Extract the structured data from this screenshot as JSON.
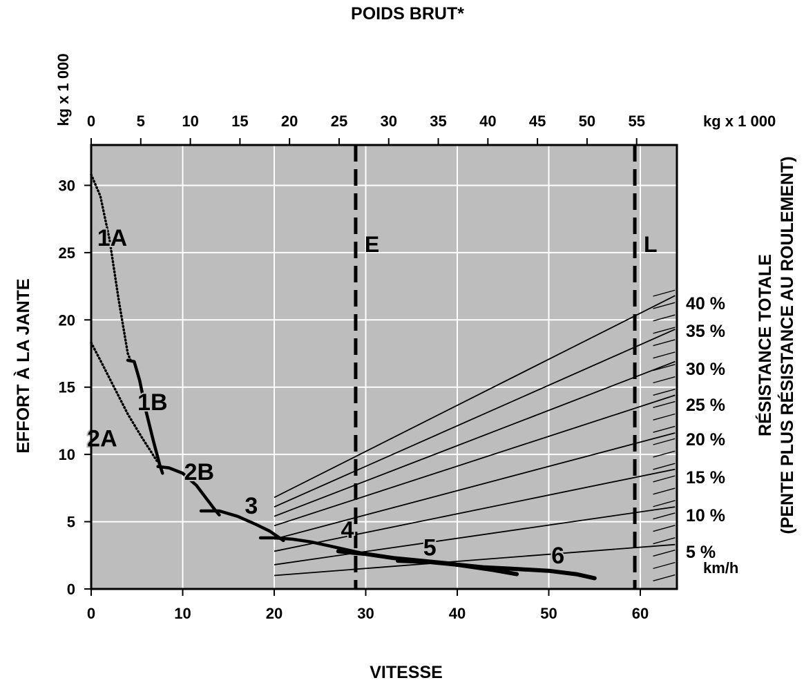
{
  "chart_data": {
    "type": "line",
    "title": "POIDS BRUT*",
    "xlabel": "VITESSE",
    "xunit": "km/h",
    "ylabel": "EFFORT À LA JANTE",
    "yunit_left": "kg x 1 000",
    "top_axis_unit": "kg x 1 000",
    "right_label_line1": "RÉSISTANCE TOTALE",
    "right_label_line2": "(PENTE PLUS RÉSISTANCE AU ROULEMENT)",
    "xlim": [
      0,
      64
    ],
    "ylim": [
      0,
      33
    ],
    "x_ticks": [
      "0",
      "10",
      "20",
      "30",
      "40",
      "50",
      "60"
    ],
    "y_ticks": [
      "0",
      "5",
      "10",
      "15",
      "20",
      "25",
      "30"
    ],
    "top_ticks": [
      "0",
      "5",
      "10",
      "15",
      "20",
      "25",
      "30",
      "35",
      "40",
      "45",
      "50",
      "55"
    ],
    "grid": true,
    "gear_curves": [
      {
        "name": "1A",
        "style": "dotted",
        "points": [
          [
            0,
            30.8
          ],
          [
            1,
            29.2
          ],
          [
            2,
            26
          ],
          [
            3,
            21.5
          ],
          [
            4,
            17.5
          ],
          [
            4.3,
            17
          ]
        ]
      },
      {
        "name": "1B",
        "style": "solid",
        "points": [
          [
            4,
            17
          ],
          [
            4.7,
            16.9
          ],
          [
            5.3,
            15.5
          ],
          [
            6,
            13.2
          ],
          [
            6.8,
            11
          ],
          [
            7.5,
            9.2
          ],
          [
            7.8,
            8.6
          ]
        ]
      },
      {
        "name": "2A",
        "style": "dotted",
        "points": [
          [
            0,
            18.3
          ],
          [
            1,
            17
          ],
          [
            2.5,
            15
          ],
          [
            4,
            13
          ],
          [
            5.5,
            11.3
          ],
          [
            7.2,
            9.5
          ]
        ]
      },
      {
        "name": "2B",
        "style": "solid",
        "points": [
          [
            7.3,
            9.1
          ],
          [
            8.5,
            9
          ],
          [
            10,
            8.6
          ],
          [
            11.5,
            7.7
          ],
          [
            12.5,
            6.8
          ],
          [
            13.5,
            5.9
          ],
          [
            14,
            5.5
          ]
        ]
      },
      {
        "name": "3",
        "style": "solid",
        "points": [
          [
            12,
            5.8
          ],
          [
            14,
            5.8
          ],
          [
            16,
            5.4
          ],
          [
            18,
            4.8
          ],
          [
            19.5,
            4.3
          ],
          [
            21,
            3.6
          ]
        ]
      },
      {
        "name": "4",
        "style": "solid",
        "points": [
          [
            18.5,
            3.8
          ],
          [
            20,
            3.8
          ],
          [
            22,
            3.7
          ],
          [
            24,
            3.5
          ],
          [
            26,
            3.2
          ],
          [
            28,
            2.9
          ],
          [
            30,
            2.6
          ],
          [
            32,
            2.4
          ]
        ]
      },
      {
        "name": "5",
        "style": "solid",
        "points": [
          [
            27,
            2.8
          ],
          [
            30,
            2.6
          ],
          [
            33,
            2.3
          ],
          [
            36,
            2.1
          ],
          [
            39,
            1.9
          ],
          [
            42,
            1.6
          ],
          [
            44,
            1.4
          ],
          [
            46.5,
            1.1
          ]
        ]
      },
      {
        "name": "6",
        "style": "solid",
        "points": [
          [
            33.5,
            2.1
          ],
          [
            37,
            2
          ],
          [
            40,
            1.8
          ],
          [
            43,
            1.6
          ],
          [
            46,
            1.5
          ],
          [
            50,
            1.35
          ],
          [
            53,
            1.1
          ],
          [
            55,
            0.8
          ]
        ]
      }
    ],
    "curve_labels": [
      {
        "text": "1A",
        "x": 2.3,
        "y": 25.5
      },
      {
        "text": "1B",
        "x": 6.7,
        "y": 13.3
      },
      {
        "text": "2A",
        "x": 1.2,
        "y": 10.6
      },
      {
        "text": "2B",
        "x": 11.8,
        "y": 8.1
      },
      {
        "text": "3",
        "x": 17.5,
        "y": 5.6
      },
      {
        "text": "4",
        "x": 28,
        "y": 3.8
      },
      {
        "text": "5",
        "x": 37,
        "y": 2.5
      },
      {
        "text": "6",
        "x": 51,
        "y": 1.9
      }
    ],
    "resistance_lines": [
      {
        "label": "40 %",
        "points": [
          [
            20,
            6.8
          ],
          [
            63.8,
            21.8
          ]
        ]
      },
      {
        "label": "35 %",
        "points": [
          [
            20,
            6.1
          ],
          [
            63.8,
            19.3
          ]
        ]
      },
      {
        "label": "30 %",
        "points": [
          [
            20,
            5.4
          ],
          [
            63.8,
            16.9
          ]
        ]
      },
      {
        "label": "25 %",
        "points": [
          [
            20,
            4.7
          ],
          [
            63.8,
            14.4
          ]
        ]
      },
      {
        "label": "20 %",
        "points": [
          [
            20,
            3.7
          ],
          [
            63.8,
            11.6
          ]
        ]
      },
      {
        "label": "15 %",
        "points": [
          [
            20,
            2.8
          ],
          [
            63.8,
            8.9
          ]
        ]
      },
      {
        "label": "10 %",
        "points": [
          [
            20,
            1.8
          ],
          [
            63.8,
            6.1
          ]
        ]
      },
      {
        "label": "5 %",
        "points": [
          [
            20,
            1
          ],
          [
            63.8,
            3.3
          ]
        ]
      }
    ],
    "vertical_markers": [
      {
        "label": "E",
        "x": 28.9,
        "style": "dashed"
      },
      {
        "label": "L",
        "x": 59.4,
        "style": "dashed"
      }
    ]
  }
}
